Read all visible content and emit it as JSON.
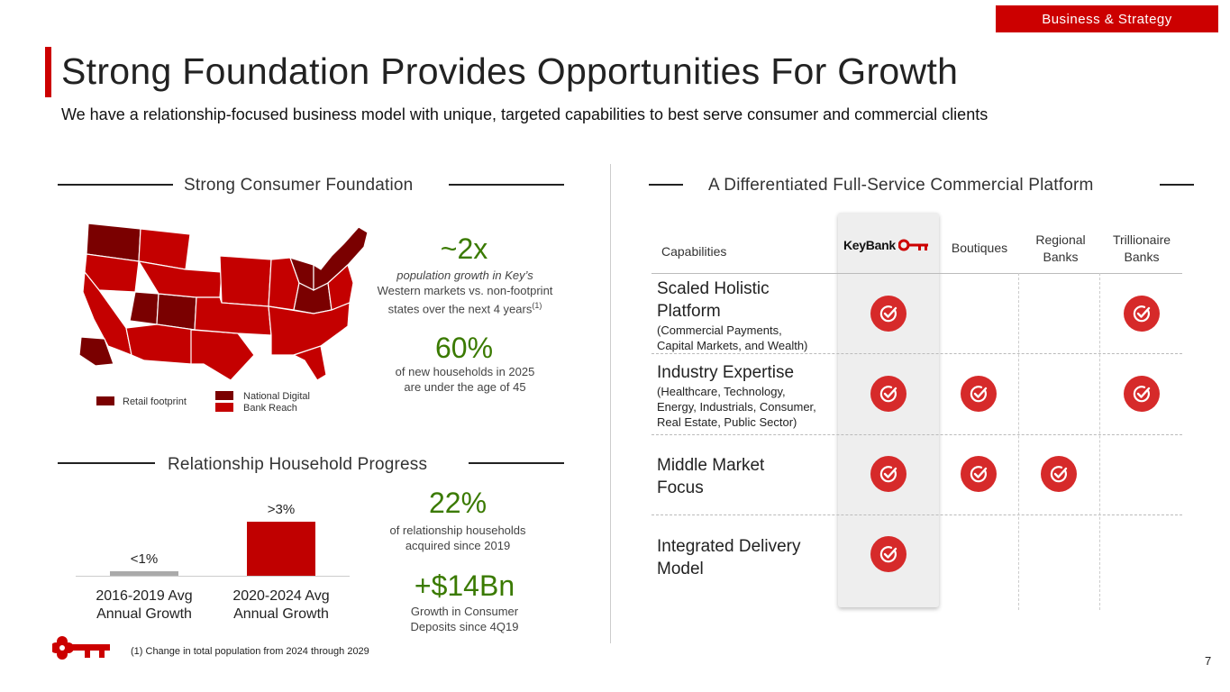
{
  "tag": "Business & Strategy",
  "title": "Strong Foundation Provides Opportunities For Growth",
  "subtitle": "We have a relationship-focused business model with unique, targeted capabilities to best serve consumer and commercial clients",
  "consumer": {
    "heading": "Strong Consumer Foundation",
    "stat1_value": "~2x",
    "stat1_line1": "population growth in Key’s",
    "stat1_line2": "Western markets vs. non-footprint",
    "stat1_line3": "states over the next 4 years",
    "stat1_sup": "(1)",
    "stat2_value": "60%",
    "stat2_line1": "of new households in 2025",
    "stat2_line2": "are under the age of 45",
    "legend_retail": "Retail footprint",
    "legend_digital_1": "National Digital",
    "legend_digital_2": "Bank Reach",
    "colors": {
      "retail": "#7a0000",
      "digital": "#c40000"
    }
  },
  "household": {
    "heading": "Relationship Household Progress",
    "stat1_value": "22%",
    "stat1_line1": "of relationship households",
    "stat1_line2": "acquired since 2019",
    "stat2_value": "+$14Bn",
    "stat2_line1": "Growth in Consumer",
    "stat2_line2": "Deposits since 4Q19"
  },
  "chart_data": {
    "type": "bar",
    "categories": [
      "2016-2019 Avg Annual Growth",
      "2020-2024 Avg Annual Growth"
    ],
    "values": [
      1,
      3
    ],
    "data_labels": [
      "<1%",
      ">3%"
    ],
    "colors": [
      "#aaaaaa",
      "#c00000"
    ]
  },
  "commercial": {
    "heading": "A Differentiated Full-Service Commercial Platform",
    "cap_header": "Capabilities",
    "logo_text": "KeyBank",
    "col_boutiques": "Boutiques",
    "col_regional_1": "Regional",
    "col_regional_2": "Banks",
    "col_trillionaire_1": "Trillionaire",
    "col_trillionaire_2": "Banks",
    "rows": [
      {
        "title_1": "Scaled Holistic",
        "title_2": "Platform",
        "sub_1": "(Commercial Payments,",
        "sub_2": "Capital Markets, and Wealth)",
        "sub_3": "",
        "checks": [
          true,
          false,
          false,
          true
        ]
      },
      {
        "title_1": "Industry Expertise",
        "title_2": "",
        "sub_1": "(Healthcare, Technology,",
        "sub_2": "Energy, Industrials, Consumer,",
        "sub_3": "Real Estate, Public Sector)",
        "checks": [
          true,
          true,
          false,
          true
        ]
      },
      {
        "title_1": "Middle Market",
        "title_2": "Focus",
        "sub_1": "",
        "sub_2": "",
        "sub_3": "",
        "checks": [
          true,
          true,
          true,
          false
        ]
      },
      {
        "title_1": "Integrated Delivery",
        "title_2": "Model",
        "sub_1": "",
        "sub_2": "",
        "sub_3": "",
        "checks": [
          true,
          false,
          false,
          false
        ]
      }
    ],
    "check_color": "#d62a2a"
  },
  "footnote": "(1) Change in total population from 2024 through 2029",
  "page_number": "7"
}
